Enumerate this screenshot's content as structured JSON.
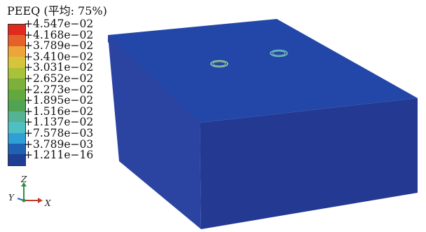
{
  "legend": {
    "title": "PEEQ (平均: 75%)",
    "labels": [
      "+4.547e−02",
      "+4.168e−02",
      "+3.789e−02",
      "+3.410e−02",
      "+3.031e−02",
      "+2.652e−02",
      "+2.273e−02",
      "+1.895e−02",
      "+1.516e−02",
      "+1.137e−02",
      "+7.578e−03",
      "+3.789e−03",
      "+1.211e−16"
    ],
    "colors": [
      "#e02a1e",
      "#e6612a",
      "#eda43a",
      "#d6c53a",
      "#a8c23a",
      "#7db03a",
      "#62a83c",
      "#4fa352",
      "#54b392",
      "#4fbfc4",
      "#2f9fd6",
      "#2061b4",
      "#1e3f93"
    ]
  },
  "triad": {
    "z_label": "Z",
    "y_label": "Y",
    "x_label": "X"
  },
  "colors": {
    "top_face": "#2347a8",
    "front_face": "#243992",
    "left_face": "#2a3f9a",
    "ring_a": "#8fd4a0",
    "ring_b": "#6cc7c3",
    "triad_z": "#2f8f3f",
    "triad_x": "#c0392b",
    "triad_y": "#2a66c9"
  }
}
